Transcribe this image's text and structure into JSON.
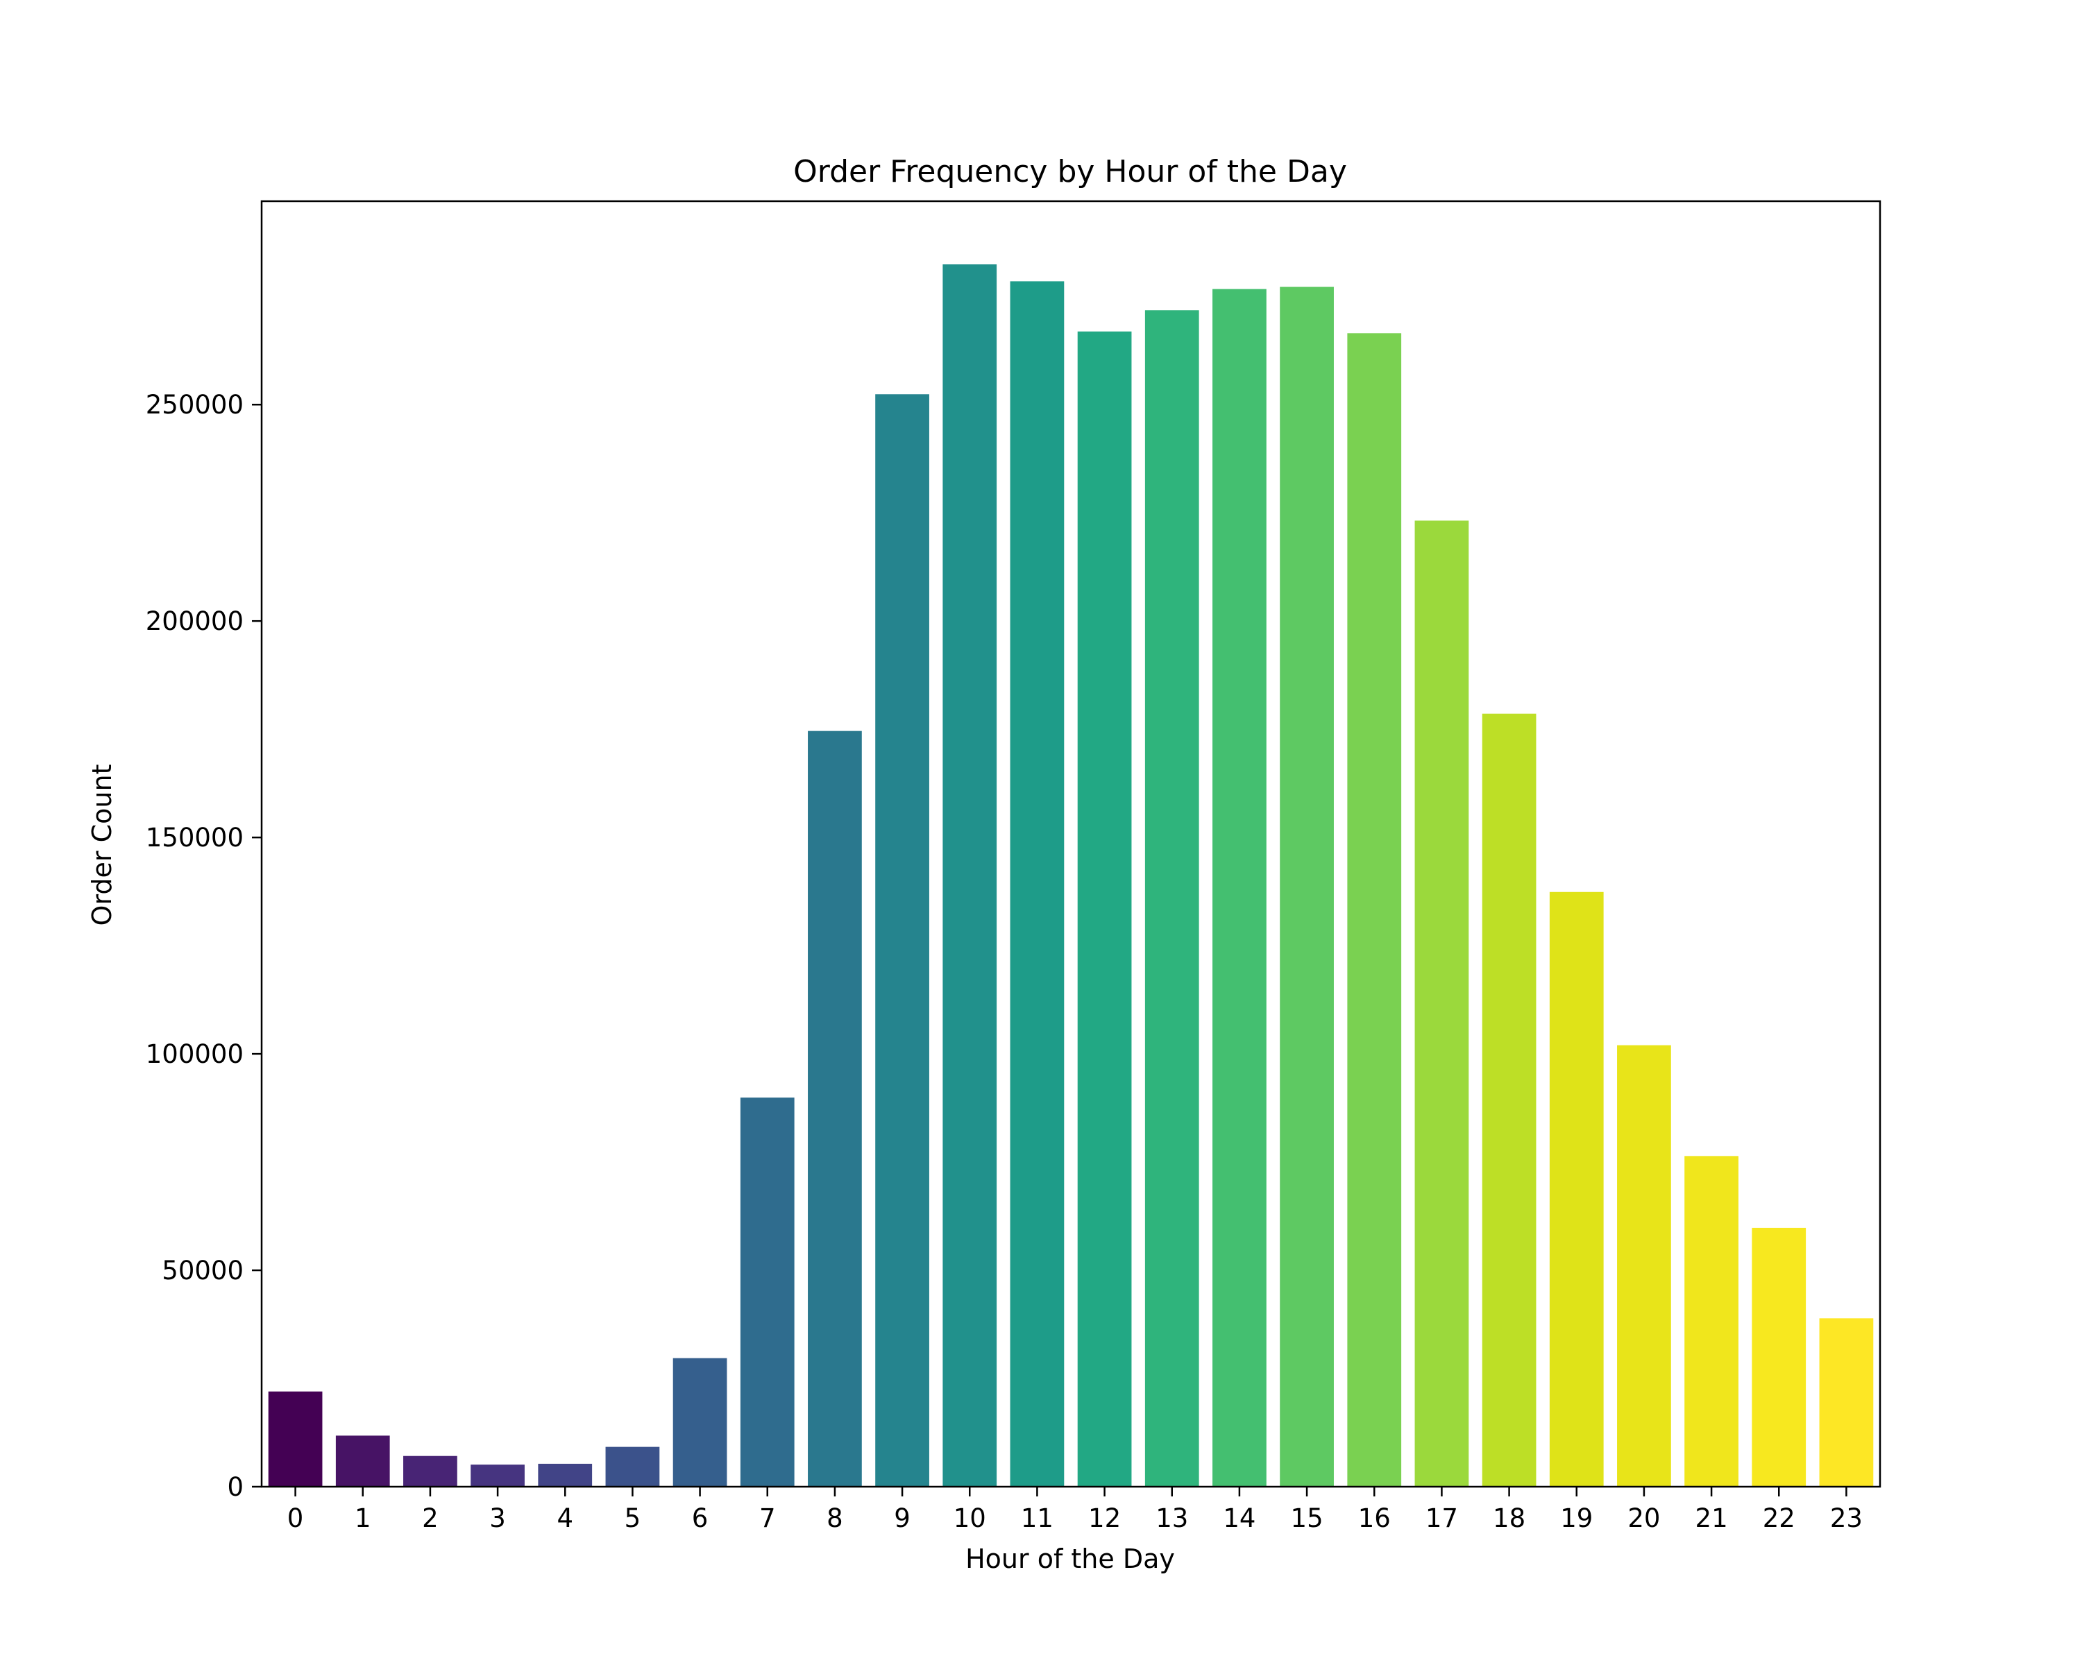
{
  "chart_data": {
    "type": "bar",
    "title": "Order Frequency by Hour of the Day",
    "xlabel": "Hour of the Day",
    "ylabel": "Order Count",
    "categories": [
      "0",
      "1",
      "2",
      "3",
      "4",
      "5",
      "6",
      "7",
      "8",
      "9",
      "10",
      "11",
      "12",
      "13",
      "14",
      "15",
      "16",
      "17",
      "18",
      "19",
      "20",
      "21",
      "22",
      "23"
    ],
    "values": [
      22000,
      11800,
      7100,
      5100,
      5300,
      9200,
      29700,
      89900,
      174600,
      252400,
      282400,
      278500,
      266900,
      271800,
      276700,
      277200,
      266500,
      223200,
      178600,
      137400,
      102000,
      76400,
      59800,
      38900
    ],
    "ylim": [
      0,
      297000
    ],
    "yticks": [
      0,
      50000,
      100000,
      150000,
      200000,
      250000
    ],
    "grid": false,
    "legend": "none",
    "colors": [
      "#440154",
      "#471365",
      "#482475",
      "#463480",
      "#414487",
      "#3b528b",
      "#355f8d",
      "#2f6c8e",
      "#2a788e",
      "#25848e",
      "#21918c",
      "#1e9c89",
      "#22a884",
      "#2fb47c",
      "#44bf70",
      "#5ec962",
      "#7ad151",
      "#9bd93c",
      "#bddf26",
      "#dfe318",
      "#e8e419",
      "#f0e61c",
      "#f7e81f",
      "#fde725"
    ]
  }
}
